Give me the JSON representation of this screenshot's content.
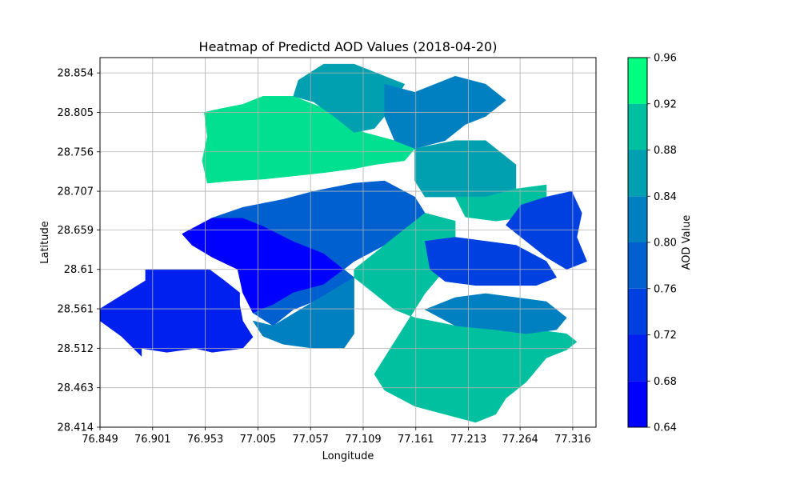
{
  "chart_data": {
    "type": "heatmap",
    "title": "Heatmap of Predictd AOD Values (2018-04-20)",
    "xlabel": "Longitude",
    "ylabel": "Latitude",
    "x_ticks": [
      "76.849",
      "76.901",
      "76.953",
      "77.005",
      "77.057",
      "77.109",
      "77.161",
      "77.213",
      "77.264",
      "77.316"
    ],
    "y_ticks": [
      "28.414",
      "28.463",
      "28.512",
      "28.561",
      "28.61",
      "28.659",
      "28.707",
      "28.756",
      "28.805",
      "28.854"
    ],
    "xlim": [
      76.849,
      77.339
    ],
    "ylim": [
      28.414,
      28.873
    ],
    "grid": true,
    "colorbar": {
      "label": "AOD Value",
      "levels": [
        0.64,
        0.68,
        0.72,
        0.76,
        0.8,
        0.84,
        0.88,
        0.92,
        0.96
      ],
      "tick_labels": [
        "0.64",
        "0.68",
        "0.72",
        "0.76",
        "0.80",
        "0.84",
        "0.88",
        "0.92",
        "0.96"
      ],
      "colors": [
        "#0000ff",
        "#0020f0",
        "#0040e0",
        "#0060d0",
        "#0080c0",
        "#00a0b0",
        "#00c0a0",
        "#00e090",
        "#00ff80"
      ],
      "cmap": "winter"
    },
    "regions": [
      {
        "level": 0.7,
        "points": [
          [
            76.849,
            28.561
          ],
          [
            76.894,
            28.596
          ],
          [
            76.894,
            28.61
          ],
          [
            76.91,
            28.61
          ],
          [
            76.923,
            28.61
          ],
          [
            76.943,
            28.61
          ],
          [
            76.957,
            28.61
          ],
          [
            76.972,
            28.596
          ],
          [
            76.987,
            28.581
          ],
          [
            76.987,
            28.566
          ],
          [
            76.99,
            28.546
          ],
          [
            77.0,
            28.526
          ],
          [
            76.99,
            28.512
          ],
          [
            76.96,
            28.507
          ],
          [
            76.943,
            28.512
          ],
          [
            76.915,
            28.507
          ],
          [
            76.89,
            28.512
          ],
          [
            76.89,
            28.502
          ],
          [
            76.87,
            28.527
          ],
          [
            76.849,
            28.546
          ]
        ]
      },
      {
        "level": 0.66,
        "points": [
          [
            76.93,
            28.654
          ],
          [
            76.96,
            28.674
          ],
          [
            76.99,
            28.674
          ],
          [
            77.01,
            28.664
          ],
          [
            77.04,
            28.645
          ],
          [
            77.07,
            28.63
          ],
          [
            77.09,
            28.61
          ],
          [
            77.07,
            28.591
          ],
          [
            77.04,
            28.581
          ],
          [
            77.02,
            28.566
          ],
          [
            77.0,
            28.556
          ],
          [
            76.99,
            28.581
          ],
          [
            76.985,
            28.61
          ],
          [
            76.96,
            28.625
          ],
          [
            76.94,
            28.64
          ]
        ]
      },
      {
        "level": 0.78,
        "points": [
          [
            76.96,
            28.674
          ],
          [
            76.99,
            28.687
          ],
          [
            77.03,
            28.697
          ],
          [
            77.06,
            28.707
          ],
          [
            77.1,
            28.717
          ],
          [
            77.13,
            28.72
          ],
          [
            77.16,
            28.7
          ],
          [
            77.17,
            28.68
          ],
          [
            77.15,
            28.66
          ],
          [
            77.13,
            28.64
          ],
          [
            77.1,
            28.62
          ],
          [
            77.09,
            28.61
          ],
          [
            77.07,
            28.63
          ],
          [
            77.04,
            28.645
          ],
          [
            77.01,
            28.664
          ],
          [
            76.99,
            28.674
          ]
        ]
      },
      {
        "level": 0.78,
        "points": [
          [
            77.09,
            28.61
          ],
          [
            77.1,
            28.6
          ],
          [
            77.08,
            28.58
          ],
          [
            77.06,
            28.57
          ],
          [
            77.04,
            28.56
          ],
          [
            77.02,
            28.54
          ],
          [
            77.0,
            28.556
          ],
          [
            77.02,
            28.566
          ],
          [
            77.04,
            28.581
          ],
          [
            77.07,
            28.591
          ]
        ]
      },
      {
        "level": 0.82,
        "points": [
          [
            77.0,
            28.546
          ],
          [
            77.01,
            28.527
          ],
          [
            77.03,
            28.517
          ],
          [
            77.06,
            28.512
          ],
          [
            77.09,
            28.512
          ],
          [
            77.1,
            28.53
          ],
          [
            77.1,
            28.56
          ],
          [
            77.1,
            28.6
          ],
          [
            77.06,
            28.57
          ],
          [
            77.02,
            28.54
          ]
        ]
      },
      {
        "level": 0.94,
        "points": [
          [
            76.952,
            28.805
          ],
          [
            76.97,
            28.81
          ],
          [
            76.99,
            28.815
          ],
          [
            77.01,
            28.825
          ],
          [
            77.04,
            28.825
          ],
          [
            77.07,
            28.81
          ],
          [
            77.09,
            28.79
          ],
          [
            77.11,
            28.78
          ],
          [
            77.14,
            28.77
          ],
          [
            77.16,
            28.76
          ],
          [
            77.15,
            28.745
          ],
          [
            77.12,
            28.74
          ],
          [
            77.1,
            28.735
          ],
          [
            77.07,
            28.73
          ],
          [
            77.04,
            28.726
          ],
          [
            77.01,
            28.722
          ],
          [
            76.98,
            28.72
          ],
          [
            76.955,
            28.717
          ],
          [
            76.95,
            28.745
          ],
          [
            76.955,
            28.775
          ]
        ]
      },
      {
        "level": 0.86,
        "points": [
          [
            77.04,
            28.825
          ],
          [
            77.045,
            28.845
          ],
          [
            77.07,
            28.865
          ],
          [
            77.1,
            28.865
          ],
          [
            77.13,
            28.85
          ],
          [
            77.15,
            28.84
          ],
          [
            77.14,
            28.82
          ],
          [
            77.13,
            28.8
          ],
          [
            77.12,
            28.785
          ],
          [
            77.1,
            28.78
          ],
          [
            77.08,
            28.8
          ],
          [
            77.06,
            28.818
          ]
        ]
      },
      {
        "level": 0.82,
        "points": [
          [
            77.13,
            28.84
          ],
          [
            77.16,
            28.83
          ],
          [
            77.2,
            28.85
          ],
          [
            77.23,
            28.84
          ],
          [
            77.25,
            28.82
          ],
          [
            77.23,
            28.8
          ],
          [
            77.21,
            28.79
          ],
          [
            77.19,
            28.77
          ],
          [
            77.16,
            28.76
          ],
          [
            77.14,
            28.77
          ],
          [
            77.13,
            28.8
          ]
        ]
      },
      {
        "level": 0.86,
        "points": [
          [
            77.16,
            28.76
          ],
          [
            77.2,
            28.77
          ],
          [
            77.23,
            28.77
          ],
          [
            77.24,
            28.76
          ],
          [
            77.26,
            28.74
          ],
          [
            77.26,
            28.71
          ],
          [
            77.23,
            28.7
          ],
          [
            77.2,
            28.7
          ],
          [
            77.17,
            28.7
          ],
          [
            77.16,
            28.72
          ]
        ]
      },
      {
        "level": 0.9,
        "points": [
          [
            77.23,
            28.7
          ],
          [
            77.26,
            28.71
          ],
          [
            77.29,
            28.715
          ],
          [
            77.29,
            28.69
          ],
          [
            77.27,
            28.675
          ],
          [
            77.24,
            28.67
          ],
          [
            77.21,
            28.675
          ],
          [
            77.2,
            28.7
          ]
        ]
      },
      {
        "level": 0.74,
        "points": [
          [
            77.265,
            28.69
          ],
          [
            77.29,
            28.7
          ],
          [
            77.315,
            28.707
          ],
          [
            77.325,
            28.68
          ],
          [
            77.32,
            28.65
          ],
          [
            77.33,
            28.62
          ],
          [
            77.31,
            28.61
          ],
          [
            77.29,
            28.625
          ],
          [
            77.27,
            28.645
          ],
          [
            77.25,
            28.665
          ]
        ]
      },
      {
        "level": 0.9,
        "points": [
          [
            77.1,
            28.61
          ],
          [
            77.13,
            28.64
          ],
          [
            77.15,
            28.66
          ],
          [
            77.17,
            28.68
          ],
          [
            77.2,
            28.67
          ],
          [
            77.2,
            28.64
          ],
          [
            77.19,
            28.61
          ],
          [
            77.17,
            28.58
          ],
          [
            77.16,
            28.56
          ],
          [
            77.15,
            28.54
          ],
          [
            77.14,
            28.52
          ],
          [
            77.13,
            28.5
          ],
          [
            77.12,
            28.48
          ],
          [
            77.13,
            28.46
          ],
          [
            77.16,
            28.44
          ],
          [
            77.19,
            28.43
          ],
          [
            77.22,
            28.42
          ],
          [
            77.24,
            28.43
          ],
          [
            77.25,
            28.45
          ],
          [
            77.27,
            28.47
          ],
          [
            77.29,
            28.5
          ],
          [
            77.31,
            28.51
          ],
          [
            77.32,
            28.52
          ],
          [
            77.31,
            28.53
          ],
          [
            77.28,
            28.535
          ],
          [
            77.26,
            28.54
          ],
          [
            77.24,
            28.55
          ],
          [
            77.22,
            28.55
          ],
          [
            77.2,
            28.54
          ],
          [
            77.18,
            28.545
          ],
          [
            77.16,
            28.55
          ],
          [
            77.14,
            28.56
          ],
          [
            77.12,
            28.58
          ],
          [
            77.1,
            28.6
          ]
        ]
      },
      {
        "level": 0.74,
        "points": [
          [
            77.17,
            28.645
          ],
          [
            77.2,
            28.65
          ],
          [
            77.23,
            28.645
          ],
          [
            77.26,
            28.64
          ],
          [
            77.29,
            28.62
          ],
          [
            77.3,
            28.6
          ],
          [
            77.28,
            28.59
          ],
          [
            77.25,
            28.59
          ],
          [
            77.22,
            28.59
          ],
          [
            77.19,
            28.595
          ],
          [
            77.175,
            28.61
          ]
        ]
      },
      {
        "level": 0.82,
        "points": [
          [
            77.17,
            28.56
          ],
          [
            77.2,
            28.575
          ],
          [
            77.23,
            28.58
          ],
          [
            77.26,
            28.575
          ],
          [
            77.29,
            28.57
          ],
          [
            77.31,
            28.55
          ],
          [
            77.3,
            28.535
          ],
          [
            77.27,
            28.53
          ],
          [
            77.24,
            28.535
          ],
          [
            77.2,
            28.54
          ]
        ]
      }
    ]
  }
}
